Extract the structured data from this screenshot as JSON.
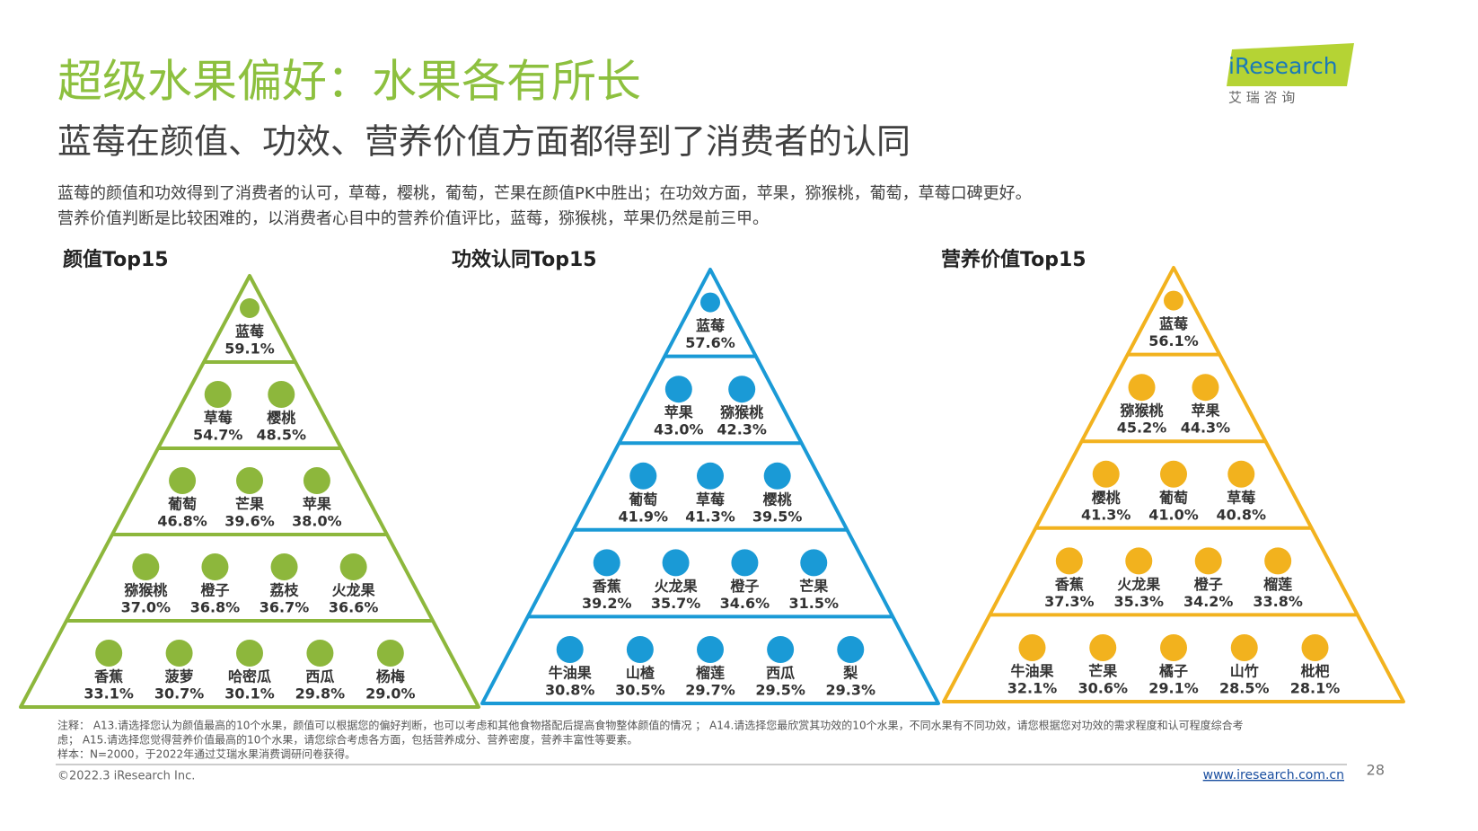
{
  "header": {
    "title": "超级水果偏好：水果各有所长",
    "subtitle": "蓝莓在颜值、功效、营养价值方面都得到了消费者的认同",
    "logo": "iResearch",
    "logo_cn": "艾 瑞 咨 询"
  },
  "summary": [
    "蓝莓的颜值和功效得到了消费者的认可，草莓，樱桃，葡萄，芒果在颜值PK中胜出；在功效方面，苹果，猕猴桃，葡萄，草莓口碑更好。",
    "营养价值判断是比较困难的，以消费者心目中的营养价值评比，蓝莓，猕猴桃，苹果仍然是前三甲。"
  ],
  "pyramids": [
    {
      "title": "颜值Top15",
      "color": "#8db73c",
      "rows": [
        [
          {
            "name": "蓝莓",
            "value": "59.1%"
          }
        ],
        [
          {
            "name": "草莓",
            "value": "54.7%"
          },
          {
            "name": "樱桃",
            "value": "48.5%"
          }
        ],
        [
          {
            "name": "葡萄",
            "value": "46.8%"
          },
          {
            "name": "芒果",
            "value": "39.6%"
          },
          {
            "name": "苹果",
            "value": "38.0%"
          }
        ],
        [
          {
            "name": "猕猴桃",
            "value": "37.0%"
          },
          {
            "name": "橙子",
            "value": "36.8%"
          },
          {
            "name": "荔枝",
            "value": "36.7%"
          },
          {
            "name": "火龙果",
            "value": "36.6%"
          }
        ],
        [
          {
            "name": "香蕉",
            "value": "33.1%"
          },
          {
            "name": "菠萝",
            "value": "30.7%"
          },
          {
            "name": "哈密瓜",
            "value": "30.1%"
          },
          {
            "name": "西瓜",
            "value": "29.8%"
          },
          {
            "name": "杨梅",
            "value": "29.0%"
          }
        ]
      ]
    },
    {
      "title": "功效认同Top15",
      "color": "#1a9ad6",
      "rows": [
        [
          {
            "name": "蓝莓",
            "value": "57.6%"
          }
        ],
        [
          {
            "name": "苹果",
            "value": "43.0%"
          },
          {
            "name": "猕猴桃",
            "value": "42.3%"
          }
        ],
        [
          {
            "name": "葡萄",
            "value": "41.9%"
          },
          {
            "name": "草莓",
            "value": "41.3%"
          },
          {
            "name": "樱桃",
            "value": "39.5%"
          }
        ],
        [
          {
            "name": "香蕉",
            "value": "39.2%"
          },
          {
            "name": "火龙果",
            "value": "35.7%"
          },
          {
            "name": "橙子",
            "value": "34.6%"
          },
          {
            "name": "芒果",
            "value": "31.5%"
          }
        ],
        [
          {
            "name": "牛油果",
            "value": "30.8%"
          },
          {
            "name": "山楂",
            "value": "30.5%"
          },
          {
            "name": "榴莲",
            "value": "29.7%"
          },
          {
            "name": "西瓜",
            "value": "29.5%"
          },
          {
            "name": "梨",
            "value": "29.3%"
          }
        ]
      ]
    },
    {
      "title": "营养价值Top15",
      "color": "#f2b21e",
      "rows": [
        [
          {
            "name": "蓝莓",
            "value": "56.1%"
          }
        ],
        [
          {
            "name": "猕猴桃",
            "value": "45.2%"
          },
          {
            "name": "苹果",
            "value": "44.3%"
          }
        ],
        [
          {
            "name": "樱桃",
            "value": "41.3%"
          },
          {
            "name": "葡萄",
            "value": "41.0%"
          },
          {
            "name": "草莓",
            "value": "40.8%"
          }
        ],
        [
          {
            "name": "香蕉",
            "value": "37.3%"
          },
          {
            "name": "火龙果",
            "value": "35.3%"
          },
          {
            "name": "橙子",
            "value": "34.2%"
          },
          {
            "name": "榴莲",
            "value": "33.8%"
          }
        ],
        [
          {
            "name": "牛油果",
            "value": "32.1%"
          },
          {
            "name": "芒果",
            "value": "30.6%"
          },
          {
            "name": "橘子",
            "value": "29.1%"
          },
          {
            "name": "山竹",
            "value": "28.5%"
          },
          {
            "name": "枇杷",
            "value": "28.1%"
          }
        ]
      ]
    }
  ],
  "footnote": [
    "注释： A13.请选择您认为颜值最高的10个水果，颜值可以根据您的偏好判断，也可以考虑和其他食物搭配后提高食物整体颜值的情况 ； A14.请选择您最欣赏其功效的10个水果，不同水果有不同功效，请您根据您对功效的需求程度和认可程度综合考",
    "虑； A15.请选择您觉得营养价值最高的10个水果，请您综合考虑各方面，包括营养成分、营养密度，营养丰富性等要素。",
    "样本：N=2000，于2022年通过艾瑞水果消费调研问卷获得。"
  ],
  "footer": {
    "copyright": "©2022.3 iResearch Inc.",
    "url": "www.iresearch.com.cn",
    "page": "28"
  }
}
